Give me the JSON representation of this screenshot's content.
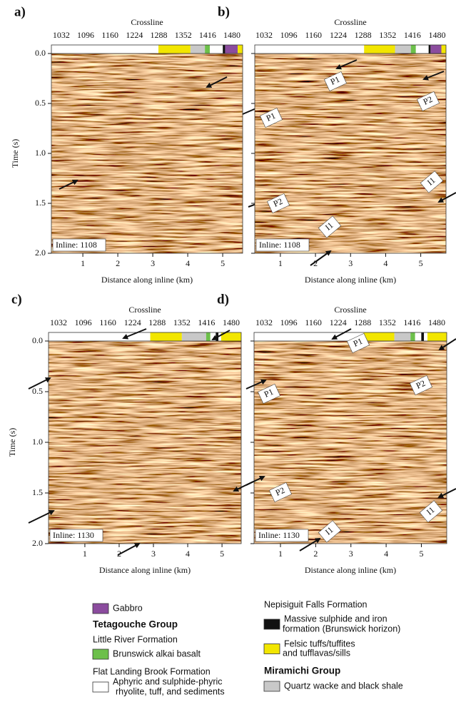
{
  "panels": [
    {
      "label": "a)",
      "x2_title": "Crossline",
      "x2lim": [
        1006,
        1508
      ],
      "x2ticks": [
        1032,
        1096,
        1160,
        1224,
        1288,
        1352,
        1416,
        1480
      ],
      "ylabel": "Time (s)",
      "ylim": [
        0,
        2
      ],
      "yticks": [
        {
          "value": 0,
          "label": "0.0"
        },
        {
          "value": 0.5,
          "label": "0.5"
        },
        {
          "value": 1,
          "label": "1.0"
        },
        {
          "value": 1.5,
          "label": "1.5"
        },
        {
          "value": 2,
          "label": "2.0"
        }
      ],
      "xlabel": "Distance along inline (km)",
      "xlim": [
        0.1,
        5.57
      ],
      "xticks": [
        1,
        2,
        3,
        4,
        5
      ],
      "inset": "Inline: 1108",
      "geology": [
        {
          "from": 1006,
          "to": 1287,
          "color": "#ffffff"
        },
        {
          "from": 1287,
          "to": 1371,
          "color": "#f2e600"
        },
        {
          "from": 1371,
          "to": 1409,
          "color": "#c8c8c8"
        },
        {
          "from": 1409,
          "to": 1422,
          "color": "#6cc04a"
        },
        {
          "from": 1422,
          "to": 1456,
          "color": "#ffffff"
        },
        {
          "from": 1456,
          "to": 1462,
          "color": "#111111"
        },
        {
          "from": 1462,
          "to": 1495,
          "color": "#8b4c9e"
        },
        {
          "from": 1495,
          "to": 1508,
          "color": "#f2e600"
        }
      ],
      "annotations": []
    },
    {
      "label": "b)",
      "x2_title": "Crossline",
      "x2lim": [
        1008,
        1503
      ],
      "x2ticks": [
        1032,
        1096,
        1160,
        1224,
        1288,
        1352,
        1416,
        1480
      ],
      "ylim": [
        0,
        2
      ],
      "yticks": [
        0,
        0.5,
        1,
        1.5,
        2
      ],
      "xlabel": "Distance along inline (km)",
      "xlim": [
        0.27,
        5.72
      ],
      "xticks": [
        1,
        2,
        3,
        4,
        5
      ],
      "inset": "Inline: 1108",
      "geology": [
        {
          "from": 1008,
          "to": 1291,
          "color": "#ffffff"
        },
        {
          "from": 1291,
          "to": 1371,
          "color": "#f2e600"
        },
        {
          "from": 1371,
          "to": 1412,
          "color": "#c8c8c8"
        },
        {
          "from": 1412,
          "to": 1425,
          "color": "#6cc04a"
        },
        {
          "from": 1425,
          "to": 1458,
          "color": "#ffffff"
        },
        {
          "from": 1458,
          "to": 1463,
          "color": "#111111"
        },
        {
          "from": 1463,
          "to": 1491,
          "color": "#8b4c9e"
        },
        {
          "from": 1491,
          "to": 1503,
          "color": "#f2e600"
        }
      ],
      "annotations": [
        "P1",
        "P2",
        "P1",
        "I1",
        "P2",
        "I1"
      ]
    },
    {
      "label": "c)",
      "x2_title": "Crossline",
      "x2lim": [
        1006,
        1506
      ],
      "x2ticks": [
        1032,
        1096,
        1160,
        1224,
        1288,
        1352,
        1416,
        1480
      ],
      "ylabel": "Time (s)",
      "ylim": [
        0,
        2
      ],
      "yticks": [
        {
          "value": 0,
          "label": "0.0"
        },
        {
          "value": 0.5,
          "label": "0.5"
        },
        {
          "value": 1,
          "label": "1.0"
        },
        {
          "value": 1.5,
          "label": "1.5"
        },
        {
          "value": 2,
          "label": "2.0"
        }
      ],
      "xlabel": "Distance along inline (km)",
      "xlim": [
        -0.06,
        5.56
      ],
      "xticks": [
        1,
        2,
        3,
        4,
        5
      ],
      "inset": "Inline: 1130",
      "geology": [
        {
          "from": 1006,
          "to": 1270,
          "color": "#ffffff"
        },
        {
          "from": 1270,
          "to": 1352,
          "color": "#f2e600"
        },
        {
          "from": 1352,
          "to": 1415,
          "color": "#c8c8c8"
        },
        {
          "from": 1415,
          "to": 1426,
          "color": "#6cc04a"
        },
        {
          "from": 1426,
          "to": 1440,
          "color": "#ffffff"
        },
        {
          "from": 1440,
          "to": 1447,
          "color": "#111111"
        },
        {
          "from": 1447,
          "to": 1454,
          "color": "#ffffff"
        },
        {
          "from": 1454,
          "to": 1506,
          "color": "#f2e600"
        }
      ],
      "annotations": []
    },
    {
      "label": "d)",
      "x2_title": "Crossline",
      "x2lim": [
        1006,
        1506
      ],
      "x2ticks": [
        1032,
        1096,
        1160,
        1224,
        1288,
        1352,
        1416,
        1480
      ],
      "ylim": [
        0,
        2
      ],
      "yticks": [
        0,
        0.5,
        1,
        1.5,
        2
      ],
      "xlabel": "Distance along inline (km)",
      "xlim": [
        0.25,
        5.72
      ],
      "xticks": [
        1,
        2,
        3,
        4,
        5
      ],
      "inset": "Inline: 1130",
      "geology": [
        {
          "from": 1006,
          "to": 1290,
          "color": "#ffffff"
        },
        {
          "from": 1290,
          "to": 1370,
          "color": "#f2e600"
        },
        {
          "from": 1370,
          "to": 1412,
          "color": "#c8c8c8"
        },
        {
          "from": 1412,
          "to": 1424,
          "color": "#6cc04a"
        },
        {
          "from": 1424,
          "to": 1440,
          "color": "#ffffff"
        },
        {
          "from": 1440,
          "to": 1447,
          "color": "#111111"
        },
        {
          "from": 1447,
          "to": 1456,
          "color": "#ffffff"
        },
        {
          "from": 1456,
          "to": 1506,
          "color": "#f2e600"
        }
      ],
      "annotations": [
        "P1",
        "P2",
        "P1",
        "P2",
        "I1",
        "I1"
      ]
    }
  ],
  "legend": {
    "left": [
      {
        "lines": [
          "Gabbro"
        ],
        "color": "#8b4c9e"
      },
      {
        "lines": [
          "Tetagouche Group"
        ],
        "style": "group"
      },
      {
        "lines": [
          "Little River Formation"
        ]
      },
      {
        "lines": [
          "Brunswick alkai basalt"
        ],
        "color": "#6cc04a"
      },
      {
        "lines": [
          "Flat Landing Brook Formation"
        ]
      },
      {
        "lines": [
          "Aphyric and sulphide-phyric",
          "rhyolite, tuff, and sediments"
        ],
        "color": "#ffffff"
      }
    ],
    "right": [
      {
        "lines": [
          "Nepisiguit Falls Formation"
        ]
      },
      {
        "lines": [
          "Massive sulphide and iron",
          "formation (Brunswick horizon)"
        ],
        "color": "#111111"
      },
      {
        "lines": [
          "Felsic tuffs/tuffites",
          "and tufflavas/sills"
        ],
        "color": "#f2e600"
      },
      {
        "lines": [
          "Miramichi Group"
        ],
        "style": "group"
      },
      {
        "lines": [
          "Quartz wacke and black shale"
        ],
        "color": "#c8c8c8"
      }
    ]
  }
}
